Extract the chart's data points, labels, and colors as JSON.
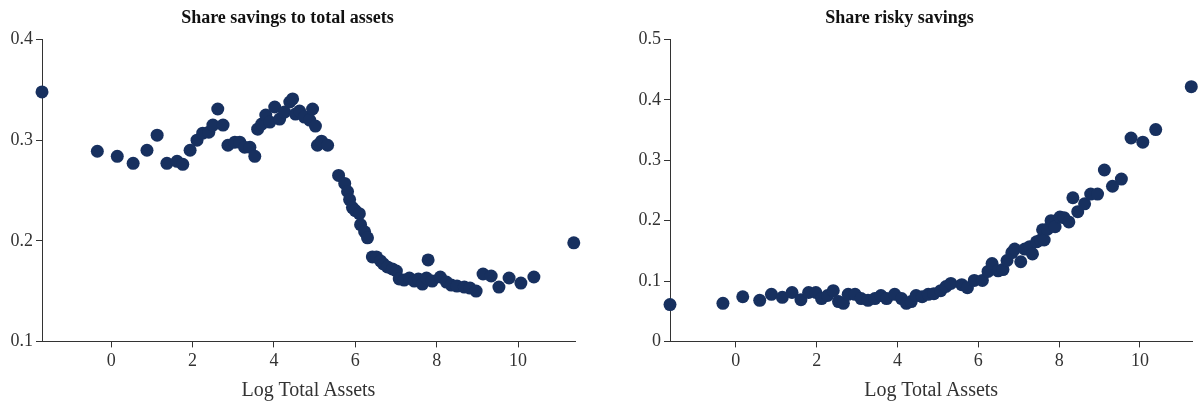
{
  "chart_data": [
    {
      "type": "scatter",
      "title": "Share savings to total assets",
      "xlabel": "Log Total Assets",
      "color": "#17305f",
      "marker": "circle",
      "xlim": [
        -1.7,
        11.4
      ],
      "xticks": [
        0,
        2,
        4,
        6,
        8,
        10
      ],
      "ylim": [
        0.1,
        0.4
      ],
      "yticks": [
        0.1,
        0.2,
        0.3,
        0.4
      ],
      "x": [
        -1.7,
        -0.34,
        0.15,
        0.54,
        0.88,
        1.13,
        1.37,
        1.62,
        1.76,
        1.94,
        2.11,
        2.25,
        2.4,
        2.5,
        2.62,
        2.75,
        2.87,
        3.04,
        3.16,
        3.28,
        3.41,
        3.53,
        3.6,
        3.7,
        3.8,
        3.9,
        4.02,
        4.14,
        4.26,
        4.39,
        4.46,
        4.53,
        4.63,
        4.75,
        4.88,
        4.95,
        5.02,
        5.07,
        5.17,
        5.32,
        5.59,
        5.74,
        5.81,
        5.86,
        5.93,
        6.0,
        6.1,
        6.13,
        6.23,
        6.3,
        6.42,
        6.52,
        6.62,
        6.69,
        6.79,
        6.91,
        7.01,
        7.08,
        7.2,
        7.33,
        7.45,
        7.55,
        7.65,
        7.75,
        7.79,
        7.89,
        8.09,
        8.24,
        8.36,
        8.5,
        8.68,
        8.82,
        8.97,
        9.14,
        9.34,
        9.53,
        9.78,
        10.07,
        10.39,
        11.37
      ],
      "values": [
        0.348,
        0.289,
        0.284,
        0.277,
        0.29,
        0.305,
        0.277,
        0.279,
        0.276,
        0.29,
        0.3,
        0.307,
        0.308,
        0.315,
        0.331,
        0.315,
        0.295,
        0.298,
        0.298,
        0.293,
        0.293,
        0.284,
        0.311,
        0.316,
        0.325,
        0.318,
        0.333,
        0.321,
        0.328,
        0.338,
        0.341,
        0.326,
        0.329,
        0.323,
        0.32,
        0.331,
        0.314,
        0.295,
        0.299,
        0.295,
        0.265,
        0.257,
        0.249,
        0.241,
        0.233,
        0.23,
        0.227,
        0.216,
        0.209,
        0.203,
        0.184,
        0.184,
        0.18,
        0.177,
        0.174,
        0.172,
        0.17,
        0.162,
        0.161,
        0.163,
        0.16,
        0.162,
        0.157,
        0.163,
        0.181,
        0.16,
        0.164,
        0.159,
        0.156,
        0.155,
        0.154,
        0.153,
        0.15,
        0.167,
        0.165,
        0.154,
        0.163,
        0.158,
        0.164,
        0.198
      ]
    },
    {
      "type": "scatter",
      "title": "Share risky savings",
      "xlabel": "Log Total Assets",
      "color": "#17305f",
      "marker": "circle",
      "xlim": [
        -1.63,
        11.3
      ],
      "xticks": [
        0,
        2,
        4,
        6,
        8,
        10
      ],
      "ylim": [
        0,
        0.5
      ],
      "yticks": [
        0,
        0.1,
        0.2,
        0.3,
        0.4,
        0.5
      ],
      "x": [
        -1.63,
        -0.32,
        0.17,
        0.59,
        0.88,
        1.15,
        1.39,
        1.61,
        1.8,
        1.98,
        2.12,
        2.27,
        2.41,
        2.54,
        2.66,
        2.78,
        2.95,
        3.1,
        3.27,
        3.44,
        3.59,
        3.73,
        3.93,
        4.1,
        4.22,
        4.34,
        4.46,
        4.61,
        4.76,
        4.9,
        5.07,
        5.2,
        5.32,
        5.59,
        5.73,
        5.9,
        6.1,
        6.24,
        6.34,
        6.49,
        6.61,
        6.71,
        6.83,
        6.9,
        7.05,
        7.15,
        7.27,
        7.34,
        7.44,
        7.54,
        7.59,
        7.63,
        7.71,
        7.8,
        7.9,
        8.02,
        8.12,
        8.24,
        8.34,
        8.46,
        8.63,
        8.78,
        8.95,
        9.12,
        9.32,
        9.54,
        9.78,
        10.07,
        10.39,
        11.27
      ],
      "values": [
        0.061,
        0.063,
        0.074,
        0.068,
        0.078,
        0.073,
        0.081,
        0.069,
        0.081,
        0.081,
        0.071,
        0.076,
        0.084,
        0.066,
        0.063,
        0.078,
        0.078,
        0.071,
        0.068,
        0.071,
        0.076,
        0.071,
        0.078,
        0.071,
        0.063,
        0.066,
        0.076,
        0.074,
        0.078,
        0.079,
        0.084,
        0.091,
        0.096,
        0.094,
        0.089,
        0.101,
        0.101,
        0.116,
        0.129,
        0.117,
        0.119,
        0.134,
        0.147,
        0.153,
        0.132,
        0.153,
        0.157,
        0.145,
        0.165,
        0.168,
        0.185,
        0.168,
        0.186,
        0.2,
        0.19,
        0.206,
        0.205,
        0.198,
        0.238,
        0.215,
        0.228,
        0.244,
        0.244,
        0.284,
        0.257,
        0.269,
        0.337,
        0.33,
        0.351,
        0.422
      ]
    }
  ]
}
